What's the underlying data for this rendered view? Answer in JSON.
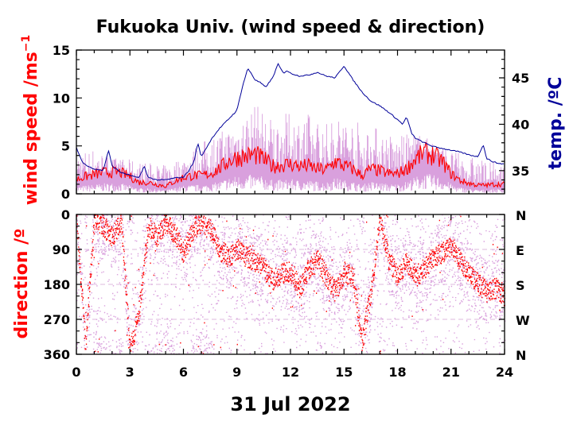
{
  "colors": {
    "gust": "#d9a0dd",
    "mean": "#ff0000",
    "temp": "#000099",
    "axis": "#000000",
    "grid": "#ddb8dd"
  },
  "chart_data": [
    {
      "type": "line",
      "title": "Fukuoka Univ. (wind speed & direction)",
      "xlabel": "31 Jul 2022",
      "xlim": [
        0,
        24
      ],
      "xticks": [
        0,
        3,
        6,
        9,
        12,
        15,
        18,
        21,
        24
      ],
      "ylabel": "wind speed /ms",
      "ylabel_sup": "−1",
      "ylim": [
        0,
        15
      ],
      "yticks": [
        0,
        5,
        10,
        15
      ],
      "y2label": "temp. /ºC",
      "y2lim": [
        32.5,
        48
      ],
      "y2ticks": [
        35,
        40,
        45
      ],
      "series": [
        {
          "role": "instantaneous wind speed",
          "axis": "left",
          "hourly_peak": [
            4.5,
            4.8,
            3.8,
            3.6,
            3.3,
            3.0,
            4.0,
            5.5,
            6.5,
            7.5,
            9.5,
            8.0,
            8.5,
            8.5,
            7.5,
            8.5,
            7.5,
            7.0,
            6.0,
            6.5,
            5.5,
            4.5,
            4.0,
            3.5,
            3.0
          ]
        },
        {
          "role": "mean wind speed",
          "axis": "left",
          "x": [
            0,
            0.5,
            1,
            1.5,
            2,
            2.5,
            3,
            3.5,
            4,
            4.5,
            5,
            5.5,
            6,
            6.5,
            7,
            7.5,
            8,
            8.5,
            9,
            9.5,
            10,
            10.5,
            11,
            11.5,
            12,
            12.5,
            13,
            13.5,
            14,
            14.5,
            15,
            15.5,
            16,
            16.5,
            17,
            17.5,
            18,
            18.5,
            19,
            19.5,
            20,
            20.5,
            21,
            21.5,
            22,
            22.5,
            23,
            23.5,
            24
          ],
          "y": [
            1.5,
            1.8,
            2.0,
            2.2,
            2.3,
            2.2,
            1.8,
            1.2,
            1.2,
            1.0,
            0.8,
            1.3,
            1.7,
            1.9,
            1.9,
            2.1,
            2.6,
            3.4,
            3.8,
            3.9,
            4.1,
            3.6,
            2.9,
            3.0,
            3.1,
            2.9,
            2.9,
            2.6,
            2.5,
            3.4,
            2.9,
            2.6,
            1.9,
            2.6,
            2.4,
            2.1,
            2.1,
            2.6,
            3.6,
            4.3,
            4.0,
            3.4,
            2.1,
            1.4,
            1.1,
            0.9,
            0.9,
            1.0,
            1.0
          ]
        },
        {
          "role": "temperature",
          "axis": "right",
          "x": [
            0,
            0.3,
            0.6,
            1,
            1.5,
            1.8,
            2,
            2.5,
            3,
            3.5,
            3.8,
            4,
            4.5,
            5,
            5.5,
            6,
            6.3,
            6.6,
            6.8,
            7,
            7.3,
            7.6,
            8,
            8.5,
            9,
            9.3,
            9.6,
            9.8,
            10,
            10.3,
            10.6,
            11,
            11.3,
            11.6,
            11.8,
            12,
            12.5,
            13,
            13.5,
            14,
            14.5,
            15,
            15.5,
            16,
            16.5,
            17,
            17.5,
            18,
            18.3,
            18.5,
            18.8,
            19,
            19.5,
            20,
            20.5,
            21,
            21.5,
            22,
            22.5,
            22.8,
            23,
            23.3,
            23.6,
            24
          ],
          "y": [
            37.5,
            36.0,
            35.5,
            35.2,
            35.0,
            37.2,
            35.5,
            34.8,
            34.5,
            34.2,
            35.5,
            34.3,
            34.0,
            34.0,
            34.2,
            34.3,
            35.0,
            36.0,
            38.0,
            36.5,
            37.5,
            38.5,
            39.5,
            40.5,
            41.5,
            44.0,
            46.0,
            45.5,
            44.8,
            44.5,
            44.0,
            45.0,
            46.5,
            45.5,
            45.8,
            45.5,
            45.2,
            45.3,
            45.6,
            45.2,
            45.0,
            46.3,
            44.8,
            43.5,
            42.5,
            42.0,
            41.3,
            40.5,
            40.0,
            40.8,
            39.0,
            38.5,
            38.0,
            37.6,
            37.4,
            37.2,
            37.0,
            36.7,
            36.5,
            37.8,
            36.3,
            36.0,
            35.8,
            35.7
          ]
        }
      ]
    },
    {
      "type": "scatter",
      "ylabel": "direction /º",
      "xlim": [
        0,
        24
      ],
      "xticks": [
        0,
        3,
        6,
        9,
        12,
        15,
        18,
        21,
        24
      ],
      "ylim": [
        0,
        360
      ],
      "yticks": [
        0,
        90,
        180,
        270,
        360
      ],
      "y2ticklabels": [
        "N",
        "E",
        "S",
        "W",
        "N"
      ],
      "series": [
        {
          "role": "mean direction",
          "x": [
            0,
            0.5,
            1,
            1.5,
            2,
            2.5,
            3,
            3.5,
            4,
            4.5,
            5,
            5.5,
            6,
            6.5,
            7,
            7.5,
            8,
            8.5,
            9,
            9.5,
            10,
            10.5,
            11,
            11.5,
            12,
            12.5,
            13,
            13.5,
            14,
            14.5,
            15,
            15.5,
            16,
            16.5,
            17,
            17.5,
            18,
            18.5,
            19,
            19.5,
            20,
            20.5,
            21,
            21.5,
            22,
            22.5,
            23,
            23.5,
            24
          ],
          "y": [
            20,
            340,
            10,
            30,
            60,
            20,
            350,
            250,
            30,
            60,
            20,
            50,
            100,
            40,
            20,
            40,
            90,
            110,
            90,
            110,
            120,
            140,
            170,
            150,
            150,
            190,
            140,
            120,
            160,
            200,
            150,
            160,
            330,
            200,
            10,
            120,
            160,
            120,
            160,
            140,
            110,
            100,
            80,
            120,
            150,
            180,
            200,
            190,
            210
          ]
        }
      ]
    }
  ]
}
